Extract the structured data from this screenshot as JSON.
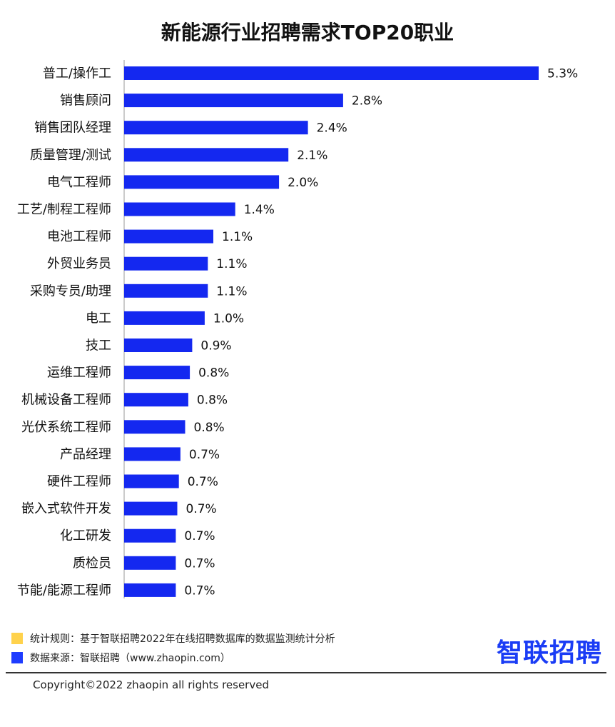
{
  "title": "新能源行业招聘需求TOP20职业",
  "chart_data": {
    "type": "bar",
    "orientation": "horizontal",
    "unit": "%",
    "categories": [
      "普工/操作工",
      "销售顾问",
      "销售团队经理",
      "质量管理/测试",
      "电气工程师",
      "工艺/制程工程师",
      "电池工程师",
      "外贸业务员",
      "采购专员/助理",
      "电工",
      "技工",
      "运维工程师",
      "机械设备工程师",
      "光伏系统工程师",
      "产品经理",
      "硬件工程师",
      "嵌入式软件开发",
      "化工研发",
      "质检员",
      "节能/能源工程师"
    ],
    "values": [
      5.3,
      2.8,
      2.4,
      2.1,
      2.0,
      1.4,
      1.1,
      1.1,
      1.1,
      1.0,
      0.9,
      0.8,
      0.8,
      0.8,
      0.7,
      0.7,
      0.7,
      0.7,
      0.7,
      0.7
    ],
    "bar_lengths": [
      5.3,
      2.8,
      2.35,
      2.1,
      1.98,
      1.42,
      1.14,
      1.07,
      1.07,
      1.03,
      0.87,
      0.84,
      0.82,
      0.78,
      0.72,
      0.7,
      0.68,
      0.66,
      0.66,
      0.66
    ],
    "labels": [
      "5.3%",
      "2.8%",
      "2.4%",
      "2.1%",
      "2.0%",
      "1.4%",
      "1.1%",
      "1.1%",
      "1.1%",
      "1.0%",
      "0.9%",
      "0.8%",
      "0.8%",
      "0.8%",
      "0.7%",
      "0.7%",
      "0.7%",
      "0.7%",
      "0.7%",
      "0.7%"
    ],
    "xlim": [
      0,
      5.3
    ],
    "grid": false,
    "bar_color": "#1428f0"
  },
  "legend": {
    "items": [
      {
        "text": "统计规则：基于智联招聘2022年在线招聘数据库的数据监测统计分析",
        "color": "#ffd24c"
      },
      {
        "text": "数据来源：智联招聘（www.zhaopin.com）",
        "color": "#1e3cff"
      }
    ]
  },
  "logo": {
    "text": "智联招聘",
    "color": "#1a3cf5"
  },
  "footer": {
    "copyright": "Copyright©2022 zhaopin all rights reserved"
  }
}
